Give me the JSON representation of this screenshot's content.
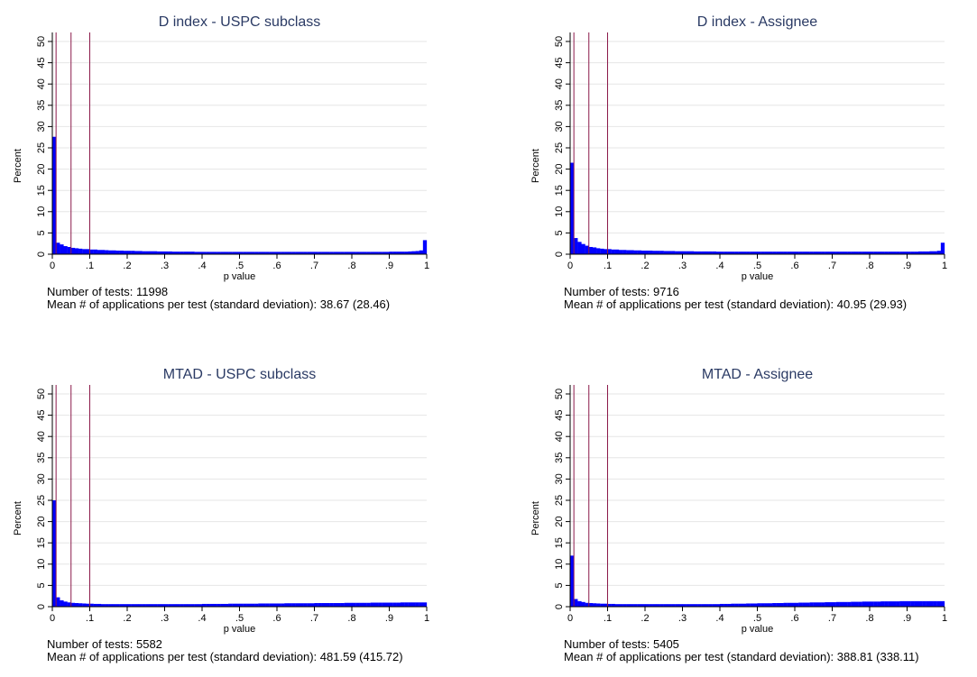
{
  "chart_data": [
    {
      "type": "bar",
      "title": "D index - USPC subclass",
      "xlabel": "p value",
      "ylabel": "Percent",
      "xlim": [
        0,
        1
      ],
      "ylim": [
        0,
        50
      ],
      "xticks": [
        "0",
        ".1",
        ".2",
        ".3",
        ".4",
        ".5",
        ".6",
        ".7",
        ".8",
        ".9",
        "1"
      ],
      "yticks": [
        "0",
        "5",
        "10",
        "15",
        "20",
        "25",
        "30",
        "35",
        "40",
        "45",
        "50"
      ],
      "grid": true,
      "bar_color": "#0000ff",
      "bin_width": 0.01,
      "reference_lines": [
        0.01,
        0.05,
        0.1
      ],
      "reference_line_color": "#8b1a4a",
      "values": [
        27.6,
        2.7,
        2.3,
        1.9,
        1.7,
        1.5,
        1.4,
        1.3,
        1.2,
        1.2,
        1.1,
        1.1,
        1.0,
        1.0,
        0.95,
        0.9,
        0.9,
        0.85,
        0.85,
        0.8,
        0.8,
        0.8,
        0.75,
        0.75,
        0.7,
        0.7,
        0.7,
        0.7,
        0.65,
        0.65,
        0.65,
        0.65,
        0.6,
        0.6,
        0.6,
        0.6,
        0.6,
        0.6,
        0.55,
        0.55,
        0.55,
        0.55,
        0.55,
        0.55,
        0.55,
        0.55,
        0.55,
        0.55,
        0.55,
        0.55,
        0.55,
        0.55,
        0.55,
        0.55,
        0.55,
        0.55,
        0.55,
        0.55,
        0.55,
        0.55,
        0.55,
        0.55,
        0.55,
        0.55,
        0.55,
        0.55,
        0.55,
        0.55,
        0.55,
        0.55,
        0.55,
        0.55,
        0.55,
        0.55,
        0.55,
        0.55,
        0.55,
        0.55,
        0.55,
        0.55,
        0.55,
        0.55,
        0.55,
        0.55,
        0.55,
        0.55,
        0.55,
        0.55,
        0.55,
        0.55,
        0.6,
        0.6,
        0.6,
        0.6,
        0.6,
        0.65,
        0.7,
        0.75,
        0.9,
        3.3
      ]
    },
    {
      "type": "bar",
      "title": "D index - Assignee",
      "xlabel": "p value",
      "ylabel": "Percent",
      "xlim": [
        0,
        1
      ],
      "ylim": [
        0,
        50
      ],
      "xticks": [
        "0",
        ".1",
        ".2",
        ".3",
        ".4",
        ".5",
        ".6",
        ".7",
        ".8",
        ".9",
        "1"
      ],
      "yticks": [
        "0",
        "5",
        "10",
        "15",
        "20",
        "25",
        "30",
        "35",
        "40",
        "45",
        "50"
      ],
      "grid": true,
      "bar_color": "#0000ff",
      "bin_width": 0.01,
      "reference_lines": [
        0.01,
        0.05,
        0.1
      ],
      "reference_line_color": "#8b1a4a",
      "values": [
        21.5,
        3.8,
        2.9,
        2.4,
        2.0,
        1.7,
        1.6,
        1.4,
        1.3,
        1.2,
        1.2,
        1.1,
        1.1,
        1.0,
        1.0,
        0.95,
        0.95,
        0.9,
        0.9,
        0.85,
        0.85,
        0.85,
        0.8,
        0.8,
        0.8,
        0.75,
        0.75,
        0.75,
        0.7,
        0.7,
        0.7,
        0.7,
        0.7,
        0.65,
        0.65,
        0.65,
        0.65,
        0.65,
        0.65,
        0.6,
        0.6,
        0.6,
        0.6,
        0.6,
        0.6,
        0.6,
        0.6,
        0.6,
        0.6,
        0.6,
        0.6,
        0.6,
        0.6,
        0.6,
        0.6,
        0.6,
        0.6,
        0.6,
        0.6,
        0.6,
        0.6,
        0.6,
        0.6,
        0.6,
        0.6,
        0.6,
        0.6,
        0.6,
        0.6,
        0.6,
        0.6,
        0.6,
        0.6,
        0.6,
        0.6,
        0.6,
        0.6,
        0.6,
        0.6,
        0.6,
        0.6,
        0.6,
        0.6,
        0.6,
        0.6,
        0.6,
        0.6,
        0.6,
        0.6,
        0.6,
        0.6,
        0.6,
        0.6,
        0.65,
        0.65,
        0.65,
        0.7,
        0.7,
        0.8,
        2.7
      ]
    },
    {
      "type": "bar",
      "title": "MTAD - USPC subclass",
      "xlabel": "p value",
      "ylabel": "Percent",
      "xlim": [
        0,
        1
      ],
      "ylim": [
        0,
        50
      ],
      "xticks": [
        "0",
        ".1",
        ".2",
        ".3",
        ".4",
        ".5",
        ".6",
        ".7",
        ".8",
        ".9",
        "1"
      ],
      "yticks": [
        "0",
        "5",
        "10",
        "15",
        "20",
        "25",
        "30",
        "35",
        "40",
        "45",
        "50"
      ],
      "grid": true,
      "bar_color": "#0000ff",
      "bin_width": 0.01,
      "reference_lines": [
        0.01,
        0.05,
        0.1
      ],
      "reference_line_color": "#8b1a4a",
      "values": [
        25.0,
        2.2,
        1.5,
        1.2,
        1.0,
        0.9,
        0.85,
        0.8,
        0.75,
        0.7,
        0.7,
        0.65,
        0.65,
        0.6,
        0.6,
        0.6,
        0.6,
        0.6,
        0.6,
        0.6,
        0.6,
        0.6,
        0.6,
        0.6,
        0.6,
        0.6,
        0.6,
        0.6,
        0.6,
        0.6,
        0.6,
        0.6,
        0.6,
        0.6,
        0.6,
        0.6,
        0.6,
        0.6,
        0.6,
        0.6,
        0.65,
        0.65,
        0.65,
        0.65,
        0.65,
        0.65,
        0.65,
        0.7,
        0.7,
        0.7,
        0.7,
        0.7,
        0.7,
        0.7,
        0.7,
        0.75,
        0.75,
        0.75,
        0.75,
        0.75,
        0.75,
        0.75,
        0.8,
        0.8,
        0.8,
        0.8,
        0.8,
        0.8,
        0.8,
        0.8,
        0.85,
        0.85,
        0.85,
        0.85,
        0.85,
        0.85,
        0.85,
        0.85,
        0.9,
        0.9,
        0.9,
        0.9,
        0.9,
        0.9,
        0.9,
        0.95,
        0.95,
        0.95,
        0.95,
        0.95,
        0.95,
        0.95,
        0.95,
        1.0,
        1.0,
        1.0,
        1.0,
        1.0,
        1.0,
        1.0
      ]
    },
    {
      "type": "bar",
      "title": "MTAD - Assignee",
      "xlabel": "p value",
      "ylabel": "Percent",
      "xlim": [
        0,
        1
      ],
      "ylim": [
        0,
        50
      ],
      "xticks": [
        "0",
        ".1",
        ".2",
        ".3",
        ".4",
        ".5",
        ".6",
        ".7",
        ".8",
        ".9",
        "1"
      ],
      "yticks": [
        "0",
        "5",
        "10",
        "15",
        "20",
        "25",
        "30",
        "35",
        "40",
        "45",
        "50"
      ],
      "grid": true,
      "bar_color": "#0000ff",
      "bin_width": 0.01,
      "reference_lines": [
        0.01,
        0.05,
        0.1
      ],
      "reference_line_color": "#8b1a4a",
      "values": [
        12.0,
        1.8,
        1.3,
        1.1,
        0.9,
        0.85,
        0.8,
        0.75,
        0.7,
        0.7,
        0.65,
        0.65,
        0.6,
        0.6,
        0.6,
        0.6,
        0.6,
        0.6,
        0.6,
        0.6,
        0.6,
        0.6,
        0.6,
        0.6,
        0.6,
        0.6,
        0.6,
        0.6,
        0.6,
        0.6,
        0.6,
        0.6,
        0.6,
        0.6,
        0.6,
        0.6,
        0.6,
        0.6,
        0.6,
        0.6,
        0.65,
        0.65,
        0.65,
        0.7,
        0.7,
        0.7,
        0.7,
        0.75,
        0.75,
        0.75,
        0.8,
        0.8,
        0.8,
        0.8,
        0.85,
        0.85,
        0.85,
        0.9,
        0.9,
        0.9,
        0.9,
        0.95,
        0.95,
        0.95,
        1.0,
        1.0,
        1.0,
        1.0,
        1.05,
        1.05,
        1.05,
        1.1,
        1.1,
        1.1,
        1.1,
        1.15,
        1.15,
        1.15,
        1.2,
        1.2,
        1.2,
        1.2,
        1.2,
        1.25,
        1.25,
        1.25,
        1.25,
        1.25,
        1.3,
        1.3,
        1.3,
        1.3,
        1.3,
        1.3,
        1.3,
        1.3,
        1.3,
        1.3,
        1.3,
        1.3
      ]
    }
  ],
  "notes": [
    {
      "tests": "Number of tests: 11998",
      "mean": "Mean # of applications per test (standard deviation): 38.67 (28.46)"
    },
    {
      "tests": "Number of tests: 9716",
      "mean": "Mean # of applications per test (standard deviation): 40.95 (29.93)"
    },
    {
      "tests": "Number of tests: 5582",
      "mean": "Mean # of applications per test (standard deviation): 481.59 (415.72)"
    },
    {
      "tests": "Number of tests: 5405",
      "mean": "Mean # of applications per test (standard deviation): 388.81 (338.11)"
    }
  ]
}
